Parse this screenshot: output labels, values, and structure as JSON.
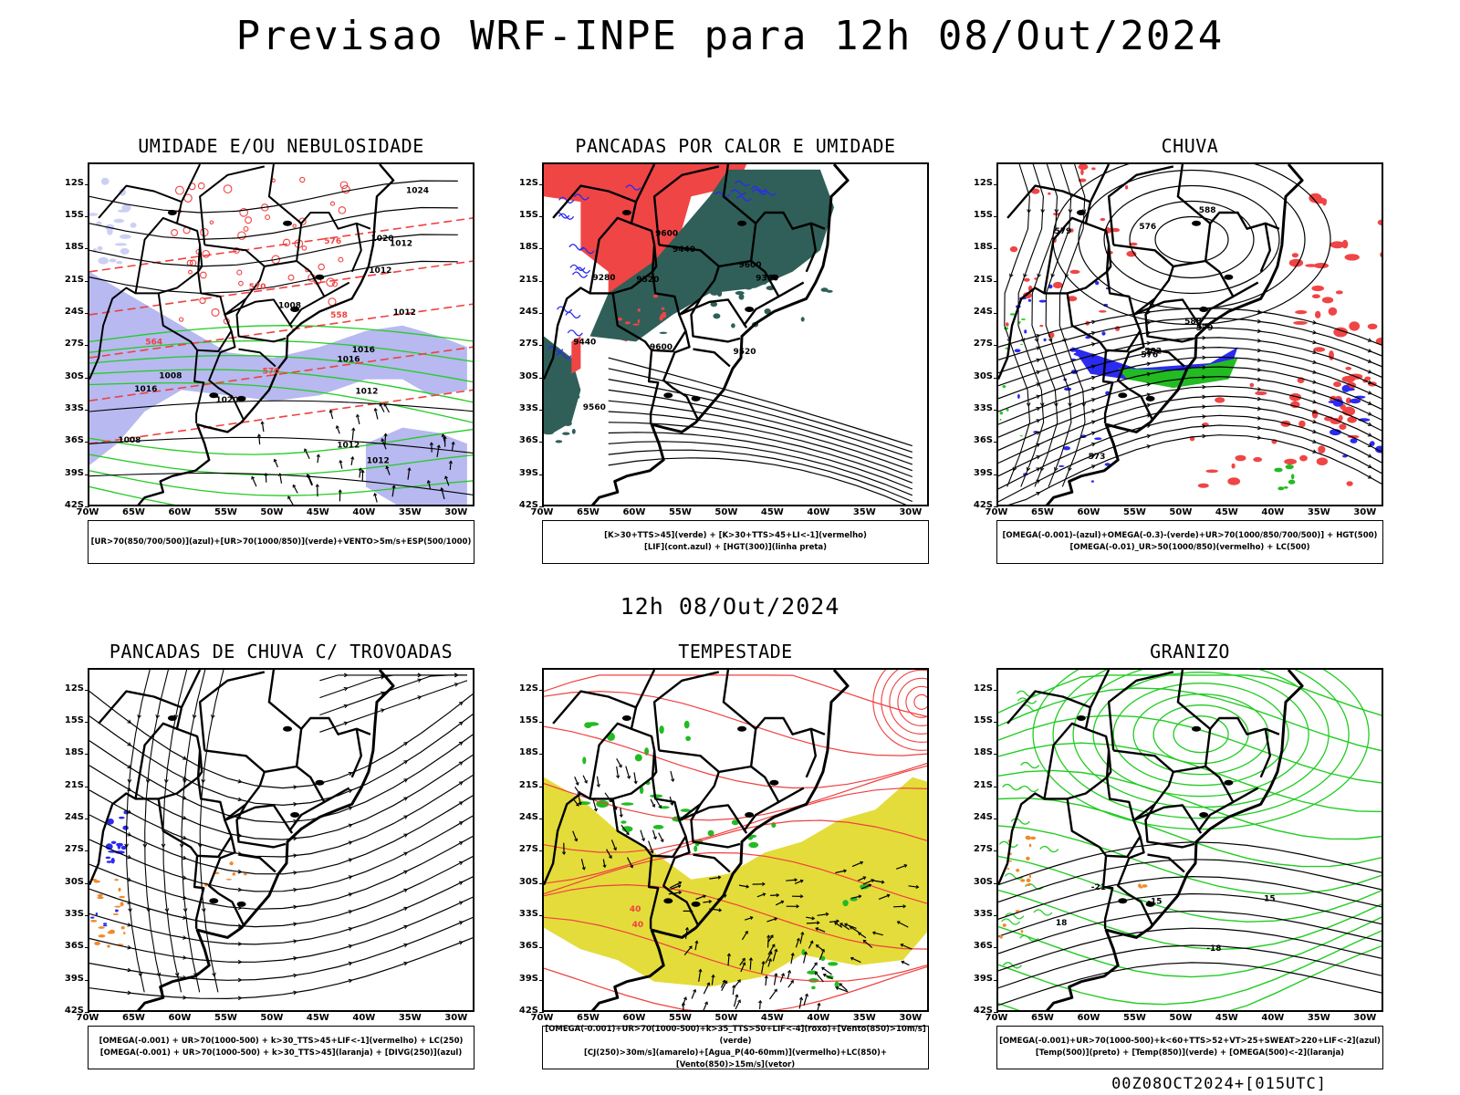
{
  "main_title": "Previsao WRF-INPE  para 12h 08/Out/2024",
  "mid_title": "12h 08/Out/2024",
  "footer": "00Z08OCT2024+[015UTC]",
  "colors": {
    "blue_fill": "#b7b9f0",
    "blue_line": "#2a2af0",
    "green_line": "#22cc22",
    "red_line": "#f04040",
    "red_fill": "#f04545",
    "dark_teal": "#2f5f58",
    "yellow_fill": "#e4dc3a",
    "orange_fill": "#f08a2a",
    "green_fill": "#22bb22"
  },
  "chart_data": [
    {
      "type": "map",
      "title": "UMIDADE E/OU NEBULOSIDADE",
      "legend_lines": [
        "[UR>70(850/700/500)](azul)+[UR>70(1000/850)](verde)+VENTO>5m/s+ESP(500/1000)"
      ],
      "xticks": [
        "70W",
        "65W",
        "60W",
        "55W",
        "50W",
        "45W",
        "40W",
        "35W",
        "30W"
      ],
      "yticks": [
        "12S",
        "15S",
        "18S",
        "21S",
        "24S",
        "27S",
        "30S",
        "33S",
        "36S",
        "39S",
        "42S"
      ],
      "contour_labels": [
        "1012",
        "1012",
        "1012",
        "1008",
        "1008",
        "1012",
        "1016",
        "1016",
        "1016",
        "1012",
        "1020",
        "1024",
        "1012",
        "1008",
        "1020",
        "570",
        "570",
        "564",
        "558",
        "576"
      ]
    },
    {
      "type": "map",
      "title": "PANCADAS POR CALOR E UMIDADE",
      "legend_lines": [
        "[K>30+TTS>45](verde) + [K>30+TTS>45+LI<-1](vermelho)",
        "[LIF](cont.azul) + [HGT(300)](linha preta)"
      ],
      "xticks": [
        "70W",
        "65W",
        "60W",
        "55W",
        "50W",
        "45W",
        "40W",
        "35W",
        "30W"
      ],
      "yticks": [
        "12S",
        "15S",
        "18S",
        "21S",
        "24S",
        "27S",
        "30S",
        "33S",
        "36S",
        "39S",
        "42S"
      ],
      "contour_labels": [
        "9600",
        "9560",
        "9440",
        "9520",
        "9600",
        "9600",
        "9520",
        "9440",
        "9360",
        "9280"
      ]
    },
    {
      "type": "map",
      "title": "CHUVA",
      "legend_lines": [
        "[OMEGA(-0.001)-(azul)+OMEGA(-0.3)-(verde)+UR>70(1000/850/700/500)] + HGT(500)",
        "[OMEGA(-0.01)_UR>50(1000/850)(vermelho) + LC(500)"
      ],
      "xticks": [
        "70W",
        "65W",
        "60W",
        "55W",
        "50W",
        "45W",
        "40W",
        "35W",
        "30W"
      ],
      "yticks": [
        "12S",
        "15S",
        "18S",
        "21S",
        "24S",
        "27S",
        "30S",
        "33S",
        "36S",
        "39S",
        "42S"
      ],
      "contour_labels": [
        "588",
        "588",
        "579",
        "576",
        "582",
        "579",
        "576",
        "573"
      ]
    },
    {
      "type": "map",
      "title": "PANCADAS DE CHUVA C/ TROVOADAS",
      "legend_lines": [
        "[OMEGA(-0.001) + UR>70(1000-500) + k>30_TTS>45+LIF<-1](vermelho) + LC(250)",
        "[OMEGA(-0.001) + UR>70(1000-500) + k>30_TTS>45](laranja) + [DIVG(250)](azul)"
      ],
      "xticks": [
        "70W",
        "65W",
        "60W",
        "55W",
        "50W",
        "45W",
        "40W",
        "35W",
        "30W"
      ],
      "yticks": [
        "12S",
        "15S",
        "18S",
        "21S",
        "24S",
        "27S",
        "30S",
        "33S",
        "36S",
        "39S",
        "42S"
      ],
      "contour_labels": []
    },
    {
      "type": "map",
      "title": "TEMPESTADE",
      "legend_lines": [
        "[OMEGA(-0.001)+UR>70(1000-500)+k>35_TTS>50+LIF<-4](roxo)+[Vento(850)>10m/s](verde)",
        "[CJ(250)>30m/s](amarelo)+[Agua_P(40-60mm)](vermelho)+LC(850)+[Vento(850)>15m/s](vetor)"
      ],
      "xticks": [
        "70W",
        "65W",
        "60W",
        "55W",
        "50W",
        "45W",
        "40W",
        "35W",
        "30W"
      ],
      "yticks": [
        "12S",
        "15S",
        "18S",
        "21S",
        "24S",
        "27S",
        "30S",
        "33S",
        "36S",
        "39S",
        "42S"
      ],
      "contour_labels": [
        "40",
        "40"
      ]
    },
    {
      "type": "map",
      "title": "GRANIZO",
      "legend_lines": [
        "[OMEGA(-0.001)+UR>70(1000-500)+k<60+TTS>52+VT>25+SWEAT>220+LIF<-2](azul)",
        "[Temp(500)](preto) + [Temp(850)](verde) + [OMEGA(500)<-2](laranja)"
      ],
      "xticks": [
        "70W",
        "65W",
        "60W",
        "55W",
        "50W",
        "45W",
        "40W",
        "35W",
        "30W"
      ],
      "yticks": [
        "12S",
        "15S",
        "18S",
        "21S",
        "24S",
        "27S",
        "30S",
        "33S",
        "36S",
        "39S",
        "42S"
      ],
      "contour_labels": [
        "-18",
        "-15",
        "-21",
        "15",
        "18"
      ]
    }
  ]
}
